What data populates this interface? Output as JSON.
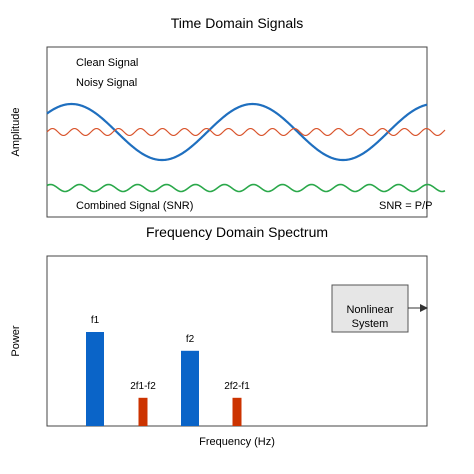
{
  "top_panel": {
    "title": "Time Domain Signals",
    "ylabel": "Amplitude",
    "legend": [
      "Clean Signal",
      "Noisy Signal"
    ],
    "combined_label": "Combined Signal (SNR)",
    "snr_label": "SNR = P/P",
    "colors": {
      "clean": "#1f6fbf",
      "noise": "#d9542c",
      "combined": "#2aa84a"
    }
  },
  "bottom_panel": {
    "title": "Frequency Domain Spectrum",
    "ylabel": "Power",
    "xlabel": "Frequency (Hz)",
    "box_label_line1": "Nonlinear",
    "box_label_line2": "System",
    "colors": {
      "fundamental": "#0a64c8",
      "intermod": "#cc3300"
    }
  },
  "chart_data": {
    "type": "bar",
    "categories": [
      "f1",
      "2f1-f2",
      "f2",
      "2f2-f1"
    ],
    "values": [
      1.0,
      0.3,
      0.8,
      0.3
    ],
    "series_color_role": [
      "fundamental",
      "intermod",
      "fundamental",
      "intermod"
    ]
  }
}
